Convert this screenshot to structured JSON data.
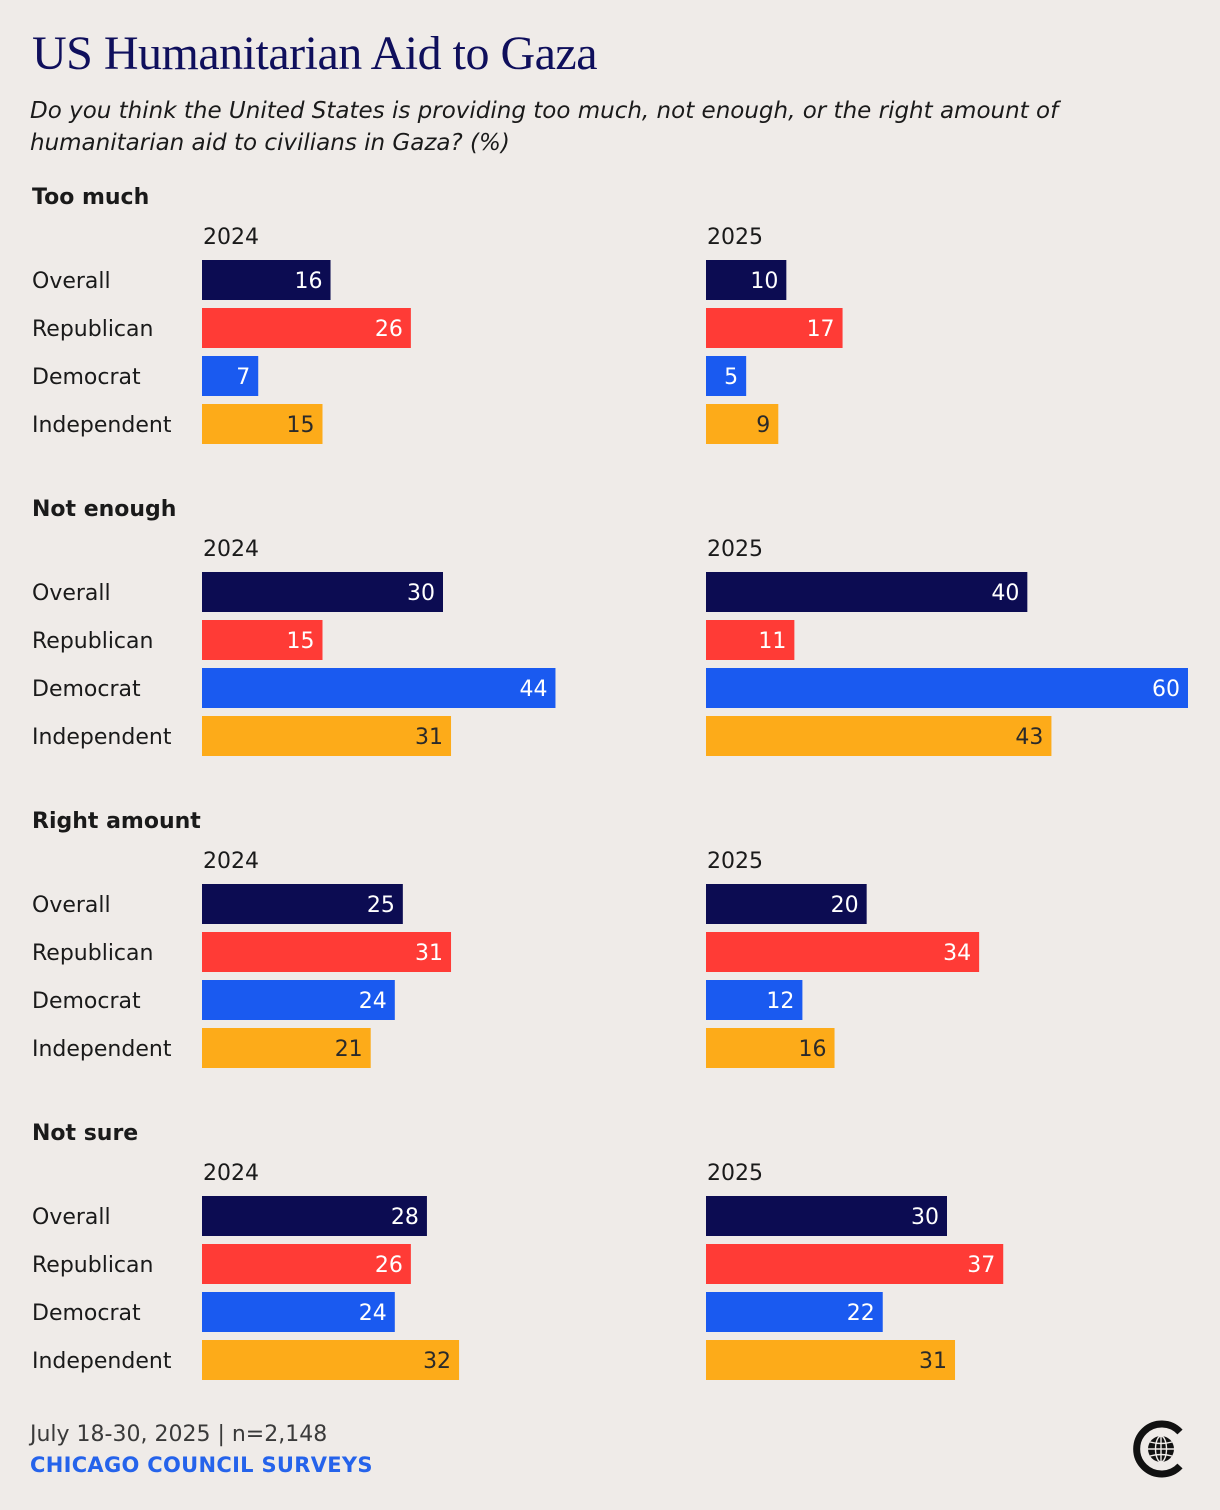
{
  "title": "US Humanitarian Aid to Gaza",
  "subtitle": "Do you think the United States is providing too much, not enough, or the right amount of humanitarian aid to civilians in Gaza? (%)",
  "footer": {
    "date": "July 18-30, 2025 | n=2,148",
    "source": "CHICAGO COUNCIL SURVEYS"
  },
  "logo_icon": "globe-c-icon",
  "colors": {
    "Overall": "#0c0c52",
    "Republican": "#ff3b36",
    "Democrat": "#1a5af0",
    "Independent": "#fdab19",
    "background": "#efebe8",
    "source_text": "#2563eb"
  },
  "chart_data": {
    "type": "bar",
    "orientation": "horizontal",
    "years": [
      "2024",
      "2025"
    ],
    "groups": [
      "Overall",
      "Republican",
      "Democrat",
      "Independent"
    ],
    "xlim": [
      0,
      60
    ],
    "grid": false,
    "panels": [
      {
        "response": "Too much",
        "series": [
          {
            "name": "2024",
            "values": [
              16,
              26,
              7,
              15
            ]
          },
          {
            "name": "2025",
            "values": [
              10,
              17,
              5,
              9
            ]
          }
        ]
      },
      {
        "response": "Not enough",
        "series": [
          {
            "name": "2024",
            "values": [
              30,
              15,
              44,
              31
            ]
          },
          {
            "name": "2025",
            "values": [
              40,
              11,
              60,
              43
            ]
          }
        ]
      },
      {
        "response": "Right amount",
        "series": [
          {
            "name": "2024",
            "values": [
              25,
              31,
              24,
              21
            ]
          },
          {
            "name": "2025",
            "values": [
              20,
              34,
              12,
              16
            ]
          }
        ]
      },
      {
        "response": "Not sure",
        "series": [
          {
            "name": "2024",
            "values": [
              28,
              26,
              24,
              32
            ]
          },
          {
            "name": "2025",
            "values": [
              30,
              37,
              22,
              31
            ]
          }
        ]
      }
    ]
  }
}
